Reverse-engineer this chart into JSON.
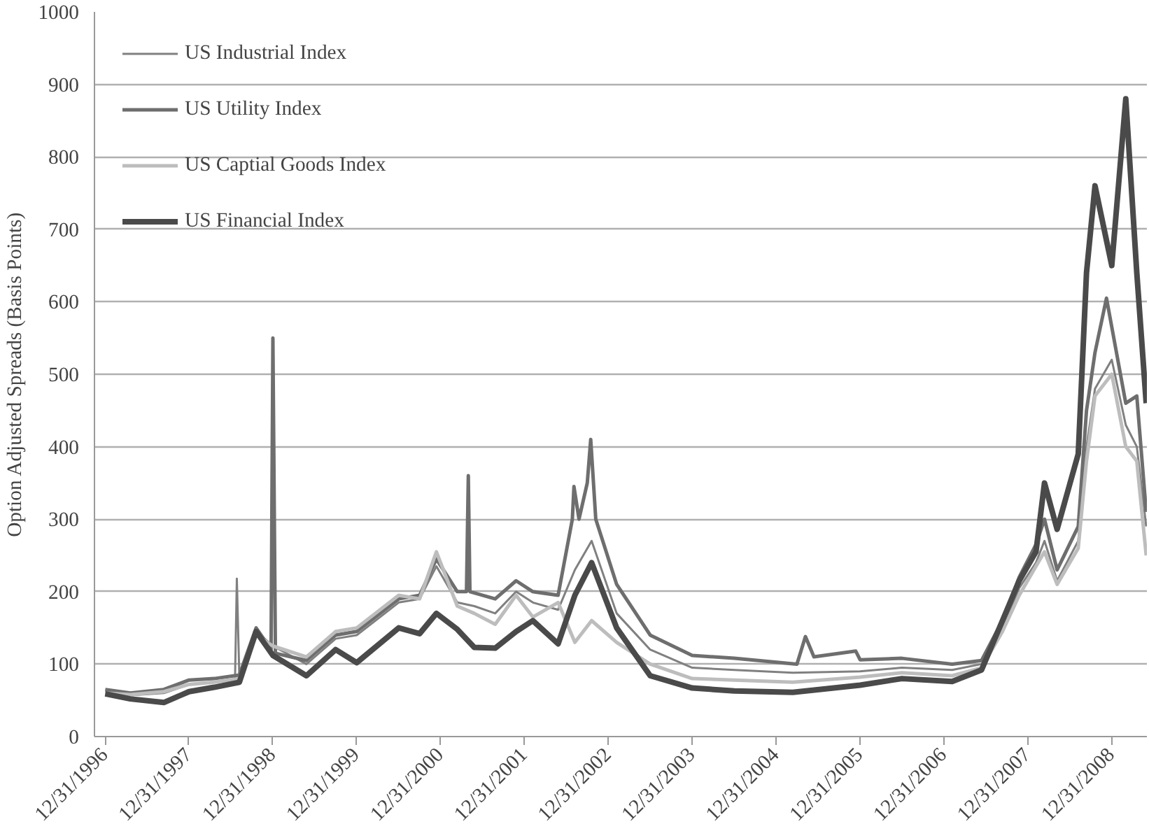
{
  "chart_data": {
    "type": "line",
    "ylabel": "Option Adjusted Spreads (Basis Points)",
    "xlim": [
      "1996-11-15",
      "2009-06-03"
    ],
    "ylim": [
      0,
      1000
    ],
    "xticks": [
      {
        "value": "1996-12-31",
        "label": "12/31/1996"
      },
      {
        "value": "1997-12-31",
        "label": "12/31/1997"
      },
      {
        "value": "1998-12-31",
        "label": "12/31/1998"
      },
      {
        "value": "1999-12-31",
        "label": "12/31/1999"
      },
      {
        "value": "2000-12-31",
        "label": "12/31/2000"
      },
      {
        "value": "2001-12-31",
        "label": "12/31/2001"
      },
      {
        "value": "2002-12-31",
        "label": "12/31/2002"
      },
      {
        "value": "2003-12-31",
        "label": "12/31/2003"
      },
      {
        "value": "2004-12-31",
        "label": "12/31/2004"
      },
      {
        "value": "2005-12-31",
        "label": "12/31/2005"
      },
      {
        "value": "2006-12-31",
        "label": "12/31/2006"
      },
      {
        "value": "2007-12-31",
        "label": "12/31/2007"
      },
      {
        "value": "2008-12-31",
        "label": "12/31/2008"
      }
    ],
    "yticks": [
      0,
      100,
      200,
      300,
      400,
      500,
      600,
      700,
      800,
      900,
      1000
    ],
    "grid": "y",
    "legend": "top left",
    "marker": "none",
    "line_style": "solid",
    "x": [
      "1997-01-01",
      "1997-04-20",
      "1997-09-13",
      "1998-01-01",
      "1998-04-20",
      "1998-08-08",
      "1998-10-20",
      "1999-01-01",
      "1999-05-27",
      "1999-10-01",
      "2000-01-01",
      "2000-07-02",
      "2000-10-01",
      "2000-12-13",
      "2001-03-14",
      "2001-05-27",
      "2001-08-26",
      "2001-11-25",
      "2002-02-06",
      "2002-05-27",
      "2002-08-08",
      "2002-10-20",
      "2003-02-06",
      "2003-07-02",
      "2004-01-01",
      "2004-07-02",
      "2005-03-14",
      "2006-01-01",
      "2006-07-02",
      "2007-02-06",
      "2007-06-14",
      "2007-09-13",
      "2007-11-25",
      "2008-02-06",
      "2008-03-14",
      "2008-05-08",
      "2008-08-08",
      "2008-09-13",
      "2008-10-20",
      "2009-01-01",
      "2009-03-03",
      "2009-04-20",
      "2009-05-31"
    ],
    "series": [
      {
        "name": "US Industrial Index",
        "color": "#808080",
        "x": [
          "1997-01-01",
          "1997-04-20",
          "1997-09-13",
          "1998-01-01",
          "1998-04-20",
          "1998-07-20",
          "1998-07-28",
          "1998-08-08",
          "1998-10-20",
          "1999-01-01",
          "1999-05-27",
          "1999-10-01",
          "2000-01-01",
          "2000-07-02",
          "2000-10-01",
          "2000-12-13",
          "2001-03-14",
          "2001-05-27",
          "2001-08-26",
          "2001-11-25",
          "2002-02-06",
          "2002-05-27",
          "2002-08-08",
          "2002-10-20",
          "2003-02-06",
          "2003-07-02",
          "2004-01-01",
          "2004-07-02",
          "2005-03-14",
          "2006-01-01",
          "2006-07-02",
          "2007-02-06",
          "2007-06-14",
          "2007-09-13",
          "2007-11-25",
          "2008-02-06",
          "2008-03-14",
          "2008-05-08",
          "2008-08-08",
          "2008-09-13",
          "2008-10-20",
          "2009-01-01",
          "2009-03-03",
          "2009-04-20",
          "2009-05-31"
        ],
        "values": [
          62,
          57,
          60,
          72,
          75,
          78,
          218,
          80,
          145,
          125,
          100,
          135,
          140,
          185,
          190,
          235,
          185,
          180,
          170,
          200,
          185,
          175,
          230,
          270,
          170,
          120,
          95,
          92,
          88,
          90,
          95,
          92,
          100,
          150,
          205,
          240,
          270,
          215,
          270,
          400,
          480,
          520,
          430,
          400,
          290
        ]
      },
      {
        "name": "US Utility Index",
        "color": "#6e6e6e",
        "x": [
          "1997-01-01",
          "1997-04-20",
          "1997-09-13",
          "1998-01-01",
          "1998-04-20",
          "1998-08-08",
          "1998-10-20",
          "1998-12-24",
          "1999-01-01",
          "1999-01-12",
          "1999-05-27",
          "1999-10-01",
          "2000-01-01",
          "2000-07-02",
          "2000-10-01",
          "2000-12-13",
          "2001-03-14",
          "2001-04-23",
          "2001-05-01",
          "2001-05-08",
          "2001-08-26",
          "2001-11-25",
          "2002-02-06",
          "2002-05-27",
          "2002-07-28",
          "2002-08-04",
          "2002-08-26",
          "2002-10-01",
          "2002-10-16",
          "2002-11-07",
          "2003-02-06",
          "2003-07-02",
          "2004-01-01",
          "2004-07-02",
          "2005-04-01",
          "2005-05-08",
          "2005-06-14",
          "2005-12-13",
          "2006-01-01",
          "2006-07-02",
          "2007-02-06",
          "2007-06-14",
          "2007-09-13",
          "2007-11-25",
          "2008-02-06",
          "2008-03-14",
          "2008-05-08",
          "2008-08-08",
          "2008-09-13",
          "2008-10-20",
          "2008-12-09",
          "2009-03-03",
          "2009-04-20",
          "2009-05-31"
        ],
        "values": [
          65,
          60,
          65,
          78,
          80,
          85,
          150,
          120,
          550,
          115,
          105,
          140,
          145,
          190,
          195,
          245,
          200,
          200,
          360,
          200,
          190,
          215,
          200,
          195,
          300,
          345,
          300,
          350,
          410,
          300,
          210,
          140,
          112,
          108,
          100,
          138,
          110,
          118,
          106,
          108,
          100,
          105,
          160,
          220,
          265,
          300,
          230,
          290,
          450,
          530,
          605,
          460,
          470,
          310
        ]
      },
      {
        "name": "US Captial Goods Index",
        "color": "#bdbdbd",
        "values": [
          60,
          58,
          62,
          72,
          75,
          80,
          140,
          125,
          110,
          145,
          150,
          195,
          190,
          255,
          180,
          170,
          155,
          195,
          165,
          185,
          130,
          160,
          130,
          100,
          80,
          78,
          75,
          82,
          88,
          84,
          95,
          145,
          195,
          235,
          255,
          210,
          260,
          380,
          470,
          500,
          400,
          380,
          250
        ]
      },
      {
        "name": "US Financial Index",
        "color": "#4a4a4a",
        "values": [
          59,
          52,
          47,
          62,
          68,
          75,
          145,
          112,
          84,
          120,
          102,
          150,
          142,
          170,
          148,
          123,
          122,
          145,
          160,
          128,
          195,
          240,
          150,
          84,
          67,
          63,
          61,
          71,
          80,
          76,
          92,
          160,
          215,
          255,
          350,
          286,
          390,
          640,
          760,
          650,
          880,
          640,
          460
        ]
      }
    ]
  }
}
